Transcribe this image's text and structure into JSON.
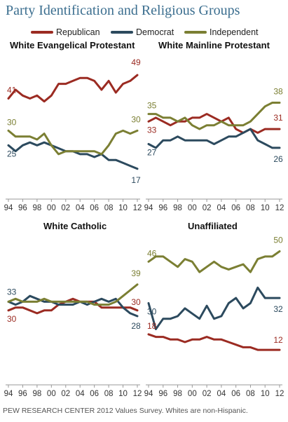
{
  "title": "Party Identification and Religious Groups",
  "legend": [
    {
      "name": "Republican",
      "color": "#9b2b22"
    },
    {
      "name": "Democrat",
      "color": "#2c4a5e"
    },
    {
      "name": "Independent",
      "color": "#7b7f33"
    }
  ],
  "footer": "PEW RESEARCH  CENTER 2012 Values Survey. Whites are non-Hispanic.",
  "chart_data": [
    {
      "type": "line",
      "title": "White Evangelical Protestant",
      "x": [
        1994,
        1995,
        1996,
        1997,
        1998,
        1999,
        2000,
        2001,
        2002,
        2003,
        2004,
        2005,
        2006,
        2007,
        2008,
        2009,
        2010,
        2011,
        2012
      ],
      "xticks": [
        "94",
        "96",
        "98",
        "00",
        "02",
        "04",
        "06",
        "08",
        "10",
        "12"
      ],
      "ylim": [
        10,
        55
      ],
      "series": [
        {
          "name": "Republican",
          "values": [
            41,
            44,
            42,
            41,
            42,
            40,
            42,
            46,
            46,
            47,
            48,
            48,
            47,
            44,
            47,
            43,
            46,
            47,
            49
          ]
        },
        {
          "name": "Democrat",
          "values": [
            25,
            23,
            25,
            26,
            25,
            26,
            25,
            24,
            23,
            23,
            22,
            22,
            21,
            22,
            20,
            20,
            19,
            18,
            17
          ]
        },
        {
          "name": "Independent",
          "values": [
            30,
            28,
            28,
            28,
            27,
            29,
            25,
            22,
            23,
            23,
            23,
            23,
            23,
            22,
            25,
            29,
            30,
            29,
            30
          ]
        }
      ],
      "end_labels": {
        "start": [
          "41",
          "25",
          "30"
        ],
        "end": [
          "49",
          "17",
          "30"
        ]
      }
    },
    {
      "type": "line",
      "title": "White Mainline Protestant",
      "x": [
        1994,
        1995,
        1996,
        1997,
        1998,
        1999,
        2000,
        2001,
        2002,
        2003,
        2004,
        2005,
        2006,
        2007,
        2008,
        2009,
        2010,
        2011,
        2012
      ],
      "xticks": [
        "94",
        "96",
        "98",
        "00",
        "02",
        "04",
        "06",
        "08",
        "10",
        "12"
      ],
      "ylim": [
        15,
        50
      ],
      "series": [
        {
          "name": "Republican",
          "values": [
            33,
            34,
            33,
            32,
            33,
            33,
            34,
            34,
            35,
            34,
            33,
            34,
            31,
            30,
            31,
            30,
            31,
            31,
            31
          ]
        },
        {
          "name": "Democrat",
          "values": [
            27,
            26,
            28,
            28,
            29,
            28,
            28,
            28,
            28,
            27,
            28,
            29,
            29,
            30,
            31,
            28,
            27,
            26,
            26
          ]
        },
        {
          "name": "Independent",
          "values": [
            35,
            35,
            34,
            34,
            33,
            34,
            32,
            31,
            32,
            32,
            33,
            32,
            32,
            32,
            33,
            35,
            37,
            38,
            38
          ]
        }
      ],
      "end_labels": {
        "start": [
          "33",
          "27",
          "35"
        ],
        "end": [
          "31",
          "26",
          "38"
        ]
      }
    },
    {
      "type": "line",
      "title": "White Catholic",
      "x": [
        1994,
        1995,
        1996,
        1997,
        1998,
        1999,
        2000,
        2001,
        2002,
        2003,
        2004,
        2005,
        2006,
        2007,
        2008,
        2009,
        2010,
        2011,
        2012
      ],
      "xticks": [
        "94",
        "96",
        "98",
        "00",
        "02",
        "04",
        "06",
        "08",
        "10",
        "12"
      ],
      "ylim": [
        10,
        55
      ],
      "series": [
        {
          "name": "Republican",
          "values": [
            30,
            31,
            31,
            30,
            29,
            30,
            30,
            32,
            33,
            34,
            33,
            33,
            33,
            31,
            31,
            31,
            31,
            31,
            30
          ]
        },
        {
          "name": "Democrat",
          "values": [
            33,
            32,
            33,
            35,
            34,
            33,
            33,
            32,
            32,
            32,
            33,
            32,
            33,
            34,
            33,
            34,
            31,
            29,
            28
          ]
        },
        {
          "name": "Independent",
          "values": [
            33,
            34,
            33,
            33,
            33,
            34,
            33,
            33,
            33,
            33,
            33,
            33,
            32,
            32,
            32,
            33,
            35,
            37,
            39
          ]
        }
      ],
      "end_labels": {
        "start": [
          "30",
          "33"
        ],
        "end": [
          "30",
          "28",
          "39"
        ]
      }
    },
    {
      "type": "line",
      "title": "Unaffiliated",
      "x": [
        1994,
        1995,
        1996,
        1997,
        1998,
        1999,
        2000,
        2001,
        2002,
        2003,
        2004,
        2005,
        2006,
        2007,
        2008,
        2009,
        2010,
        2011,
        2012
      ],
      "xticks": [
        "94",
        "96",
        "98",
        "00",
        "02",
        "04",
        "06",
        "08",
        "10",
        "12"
      ],
      "ylim": [
        5,
        55
      ],
      "series": [
        {
          "name": "Republican",
          "values": [
            18,
            17,
            17,
            16,
            16,
            15,
            16,
            16,
            17,
            16,
            16,
            15,
            14,
            13,
            13,
            12,
            12,
            12,
            12
          ]
        },
        {
          "name": "Democrat",
          "values": [
            30,
            20,
            24,
            24,
            25,
            28,
            26,
            24,
            29,
            24,
            25,
            30,
            32,
            28,
            30,
            36,
            32,
            32,
            32
          ]
        },
        {
          "name": "Independent",
          "values": [
            46,
            48,
            48,
            46,
            44,
            47,
            46,
            42,
            44,
            46,
            44,
            43,
            44,
            45,
            42,
            47,
            48,
            48,
            50
          ]
        }
      ],
      "end_labels": {
        "start": [
          "18",
          "30",
          "46"
        ],
        "end": [
          "12",
          "32",
          "50"
        ]
      }
    }
  ]
}
